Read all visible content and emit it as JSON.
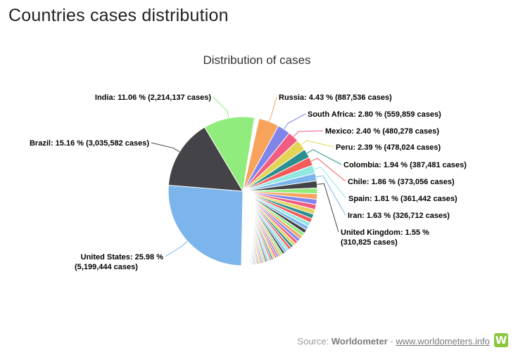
{
  "page": {
    "heading": "Countries cases distribution"
  },
  "source": {
    "prefix": "Source: ",
    "name": "Worldometer",
    "separator": " - ",
    "link_text": "www.worldometers.info",
    "logo_letter": "W"
  },
  "chart_data": {
    "type": "pie",
    "title": "Distribution of cases",
    "slices": [
      {
        "name": "United States",
        "label": "United States: 25.98 %",
        "label2": "(5,199,444 cases)",
        "value": 25.98,
        "color": "#7cb5ec"
      },
      {
        "name": "Brazil",
        "label": "Brazil: 15.16 % (3,035,582 cases)",
        "value": 15.16,
        "color": "#434348"
      },
      {
        "name": "India",
        "label": "India: 11.06 % (2,214,137 cases)",
        "value": 11.06,
        "color": "#90ed7d"
      },
      {
        "name": "Russia",
        "label": "Russia: 4.43 % (887,536 cases)",
        "value": 4.43,
        "color": "#f7a35c"
      },
      {
        "name": "South Africa",
        "label": "South Africa: 2.80 % (559,859 cases)",
        "value": 2.8,
        "color": "#8085e9"
      },
      {
        "name": "Mexico",
        "label": "Mexico: 2.40 % (480,278 cases)",
        "value": 2.4,
        "color": "#f15c80"
      },
      {
        "name": "Peru",
        "label": "Peru: 2.39 % (478,024 cases)",
        "value": 2.39,
        "color": "#e4d354"
      },
      {
        "name": "Colombia",
        "label": "Colombia: 1.94 % (387,481 cases)",
        "value": 1.94,
        "color": "#2b908f"
      },
      {
        "name": "Chile",
        "label": "Chile: 1.86 % (373,056 cases)",
        "value": 1.86,
        "color": "#f45b5b"
      },
      {
        "name": "Spain",
        "label": "Spain: 1.81 % (361,442 cases)",
        "value": 1.81,
        "color": "#91e8e1"
      },
      {
        "name": "Iran",
        "label": "Iran: 1.63 % (326,712 cases)",
        "value": 1.63,
        "color": "#7cb5ec"
      },
      {
        "name": "United Kingdom",
        "label": "United Kingdom: 1.55 %",
        "label2": "(310,825 cases)",
        "value": 1.55,
        "color": "#434348"
      }
    ],
    "other_slices_total": 25.99,
    "palette": [
      "#90ed7d",
      "#f7a35c",
      "#8085e9",
      "#f15c80",
      "#e4d354",
      "#2b908f",
      "#f45b5b",
      "#91e8e1",
      "#7cb5ec",
      "#434348"
    ]
  }
}
